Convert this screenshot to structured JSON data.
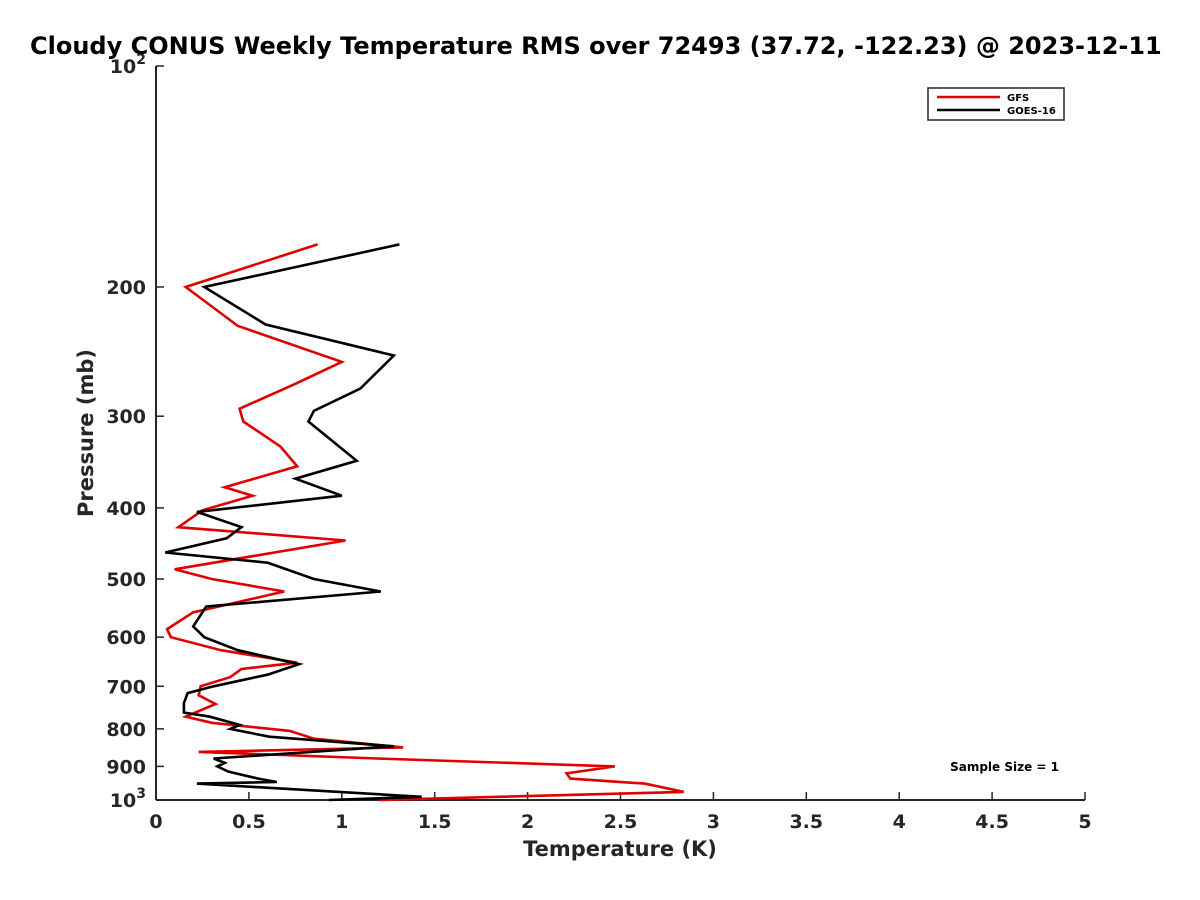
{
  "chart_data": {
    "type": "line",
    "title": "Cloudy CONUS Weekly Temperature RMS over 72493 (37.72, -122.23) @ 2023-12-11",
    "xlabel": "Temperature (K)",
    "ylabel": "Pressure (mb)",
    "xlim": [
      0,
      5
    ],
    "ylim": [
      100,
      1000
    ],
    "yscale": "log",
    "y_reversed": true,
    "grid": false,
    "legend_position": "top-right",
    "x_ticks": [
      {
        "value": 0,
        "label": "0"
      },
      {
        "value": 0.5,
        "label": "0.5"
      },
      {
        "value": 1,
        "label": "1"
      },
      {
        "value": 1.5,
        "label": "1.5"
      },
      {
        "value": 2,
        "label": "2"
      },
      {
        "value": 2.5,
        "label": "2.5"
      },
      {
        "value": 3,
        "label": "3"
      },
      {
        "value": 3.5,
        "label": "3.5"
      },
      {
        "value": 4,
        "label": "4"
      },
      {
        "value": 4.5,
        "label": "4.5"
      },
      {
        "value": 5,
        "label": "5"
      }
    ],
    "y_ticks": [
      {
        "value": 200,
        "label": "200"
      },
      {
        "value": 300,
        "label": "300"
      },
      {
        "value": 400,
        "label": "400"
      },
      {
        "value": 500,
        "label": "500"
      },
      {
        "value": 600,
        "label": "600"
      },
      {
        "value": 700,
        "label": "700"
      },
      {
        "value": 800,
        "label": "800"
      },
      {
        "value": 900,
        "label": "900"
      }
    ],
    "y_power_ticks": [
      {
        "value": 100,
        "base": "10",
        "exp": "2"
      },
      {
        "value": 1000,
        "base": "10",
        "exp": "3"
      }
    ],
    "annotation": "Sample Size = 1",
    "series": [
      {
        "name": "GFS",
        "color": "#e00000",
        "points": [
          [
            0.87,
            175
          ],
          [
            0.16,
            200
          ],
          [
            0.44,
            226
          ],
          [
            1.0,
            253
          ],
          [
            0.75,
            271
          ],
          [
            0.45,
            293
          ],
          [
            0.47,
            305
          ],
          [
            0.67,
            330
          ],
          [
            0.76,
            351
          ],
          [
            0.37,
            375
          ],
          [
            0.52,
            385
          ],
          [
            0.25,
            403
          ],
          [
            0.12,
            425
          ],
          [
            1.02,
            443
          ],
          [
            0.1,
            485
          ],
          [
            0.3,
            500
          ],
          [
            0.69,
            520
          ],
          [
            0.2,
            555
          ],
          [
            0.06,
            585
          ],
          [
            0.08,
            600
          ],
          [
            0.35,
            625
          ],
          [
            0.76,
            650
          ],
          [
            0.46,
            663
          ],
          [
            0.4,
            680
          ],
          [
            0.24,
            700
          ],
          [
            0.23,
            720
          ],
          [
            0.32,
            740
          ],
          [
            0.16,
            770
          ],
          [
            0.3,
            785
          ],
          [
            0.72,
            805
          ],
          [
            0.85,
            825
          ],
          [
            1.33,
            848
          ],
          [
            0.23,
            860
          ],
          [
            1.19,
            878
          ],
          [
            2.47,
            900
          ],
          [
            2.21,
            920
          ],
          [
            2.23,
            935
          ],
          [
            2.63,
            950
          ],
          [
            2.84,
            975
          ],
          [
            1.2,
            1000
          ]
        ]
      },
      {
        "name": "GOES-16",
        "color": "#000000",
        "points": [
          [
            1.31,
            175
          ],
          [
            0.26,
            200
          ],
          [
            0.59,
            225
          ],
          [
            1.28,
            248
          ],
          [
            1.1,
            275
          ],
          [
            0.85,
            295
          ],
          [
            0.82,
            305
          ],
          [
            1.08,
            345
          ],
          [
            0.75,
            365
          ],
          [
            1.0,
            385
          ],
          [
            0.22,
            405
          ],
          [
            0.46,
            425
          ],
          [
            0.38,
            440
          ],
          [
            0.05,
            460
          ],
          [
            0.6,
            475
          ],
          [
            0.85,
            500
          ],
          [
            1.21,
            520
          ],
          [
            0.27,
            545
          ],
          [
            0.2,
            580
          ],
          [
            0.26,
            600
          ],
          [
            0.44,
            625
          ],
          [
            0.77,
            653
          ],
          [
            0.6,
            675
          ],
          [
            0.31,
            700
          ],
          [
            0.17,
            715
          ],
          [
            0.15,
            738
          ],
          [
            0.15,
            760
          ],
          [
            0.29,
            770
          ],
          [
            0.45,
            790
          ],
          [
            0.4,
            800
          ],
          [
            0.61,
            820
          ],
          [
            1.28,
            845
          ],
          [
            0.31,
            878
          ],
          [
            0.37,
            890
          ],
          [
            0.33,
            900
          ],
          [
            0.39,
            915
          ],
          [
            0.55,
            935
          ],
          [
            0.65,
            945
          ],
          [
            0.22,
            950
          ],
          [
            1.43,
            990
          ],
          [
            0.93,
            1000
          ]
        ]
      }
    ]
  }
}
